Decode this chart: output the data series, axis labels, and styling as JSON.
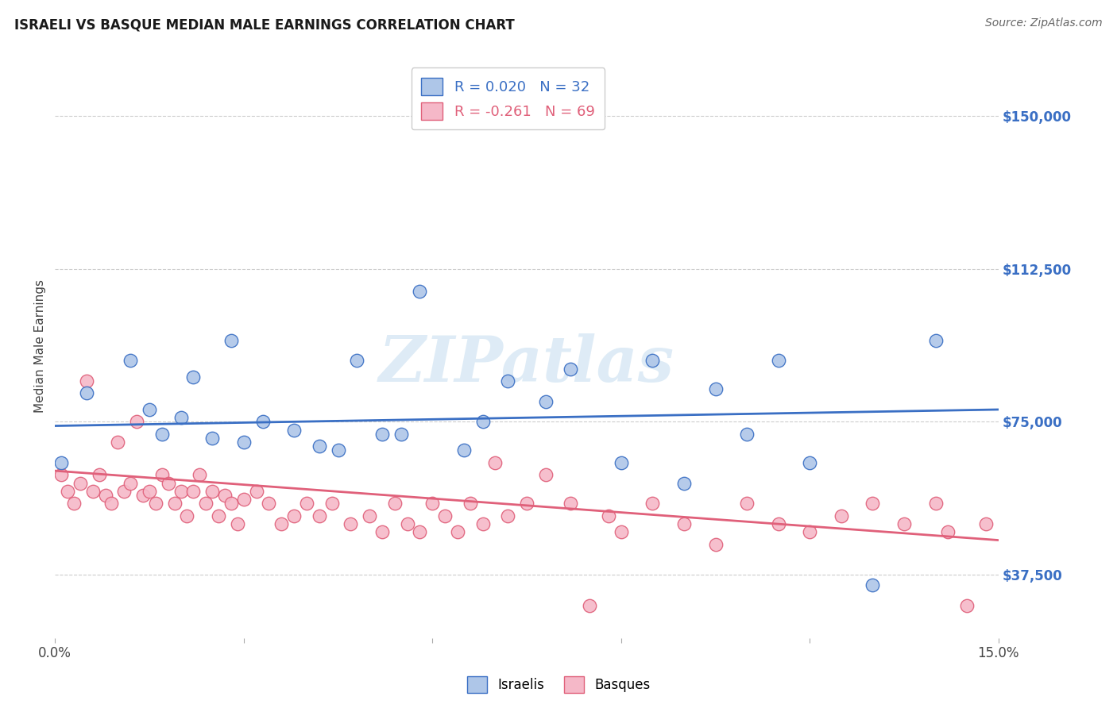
{
  "title": "ISRAELI VS BASQUE MEDIAN MALE EARNINGS CORRELATION CHART",
  "source": "Source: ZipAtlas.com",
  "ylabel": "Median Male Earnings",
  "xlim": [
    0.0,
    0.15
  ],
  "ylim": [
    22000,
    165000
  ],
  "yticks": [
    37500,
    75000,
    112500,
    150000
  ],
  "ytick_labels": [
    "$37,500",
    "$75,000",
    "$112,500",
    "$150,000"
  ],
  "xticks": [
    0.0,
    0.03,
    0.06,
    0.09,
    0.12,
    0.15
  ],
  "xtick_labels": [
    "0.0%",
    "",
    "",
    "",
    "",
    "15.0%"
  ],
  "israeli_R": 0.02,
  "israeli_N": 32,
  "basque_R": -0.261,
  "basque_N": 69,
  "israeli_color": "#aec6e8",
  "israeli_line_color": "#3a6fc4",
  "basque_color": "#f5b8c8",
  "basque_line_color": "#e0607a",
  "background_color": "#ffffff",
  "watermark": "ZIPatlas",
  "watermark_color": "#c8dff0",
  "israeli_line_x": [
    0.0,
    0.15
  ],
  "israeli_line_y": [
    74000,
    78000
  ],
  "basque_line_x": [
    0.0,
    0.15
  ],
  "basque_line_y": [
    63000,
    46000
  ],
  "israeli_x": [
    0.001,
    0.005,
    0.012,
    0.015,
    0.017,
    0.02,
    0.022,
    0.025,
    0.028,
    0.03,
    0.033,
    0.038,
    0.042,
    0.045,
    0.048,
    0.052,
    0.055,
    0.058,
    0.065,
    0.068,
    0.072,
    0.078,
    0.082,
    0.09,
    0.095,
    0.1,
    0.105,
    0.11,
    0.115,
    0.12,
    0.13,
    0.14
  ],
  "israeli_y": [
    65000,
    82000,
    90000,
    78000,
    72000,
    76000,
    86000,
    71000,
    95000,
    70000,
    75000,
    73000,
    69000,
    68000,
    90000,
    72000,
    72000,
    107000,
    68000,
    75000,
    85000,
    80000,
    88000,
    65000,
    90000,
    60000,
    83000,
    72000,
    90000,
    65000,
    35000,
    95000
  ],
  "basque_x": [
    0.001,
    0.002,
    0.003,
    0.004,
    0.005,
    0.006,
    0.007,
    0.008,
    0.009,
    0.01,
    0.011,
    0.012,
    0.013,
    0.014,
    0.015,
    0.016,
    0.017,
    0.018,
    0.019,
    0.02,
    0.021,
    0.022,
    0.023,
    0.024,
    0.025,
    0.026,
    0.027,
    0.028,
    0.029,
    0.03,
    0.032,
    0.034,
    0.036,
    0.038,
    0.04,
    0.042,
    0.044,
    0.047,
    0.05,
    0.052,
    0.054,
    0.056,
    0.058,
    0.06,
    0.062,
    0.064,
    0.066,
    0.068,
    0.07,
    0.072,
    0.075,
    0.078,
    0.082,
    0.085,
    0.088,
    0.09,
    0.095,
    0.1,
    0.105,
    0.11,
    0.115,
    0.12,
    0.125,
    0.13,
    0.135,
    0.14,
    0.142,
    0.145,
    0.148
  ],
  "basque_y": [
    62000,
    58000,
    55000,
    60000,
    85000,
    58000,
    62000,
    57000,
    55000,
    70000,
    58000,
    60000,
    75000,
    57000,
    58000,
    55000,
    62000,
    60000,
    55000,
    58000,
    52000,
    58000,
    62000,
    55000,
    58000,
    52000,
    57000,
    55000,
    50000,
    56000,
    58000,
    55000,
    50000,
    52000,
    55000,
    52000,
    55000,
    50000,
    52000,
    48000,
    55000,
    50000,
    48000,
    55000,
    52000,
    48000,
    55000,
    50000,
    65000,
    52000,
    55000,
    62000,
    55000,
    30000,
    52000,
    48000,
    55000,
    50000,
    45000,
    55000,
    50000,
    48000,
    52000,
    55000,
    50000,
    55000,
    48000,
    30000,
    50000
  ]
}
